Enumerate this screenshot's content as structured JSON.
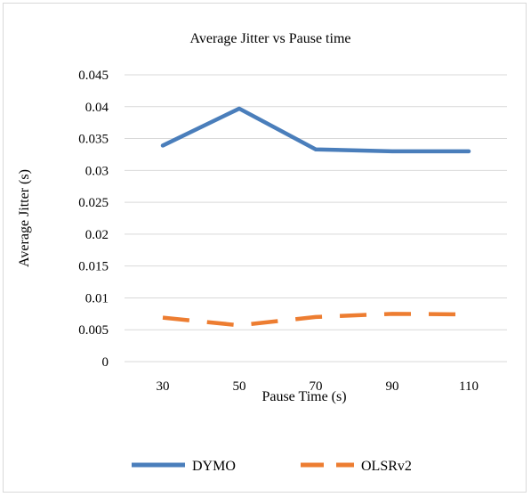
{
  "chart_data": {
    "type": "line",
    "title": "Average Jitter vs Pause time",
    "xlabel": "Pause Time (s)",
    "ylabel": "Average Jitter (s)",
    "categories": [
      "30",
      "50",
      "70",
      "90",
      "110"
    ],
    "ylim": [
      0,
      0.045
    ],
    "yticks": [
      "0",
      "0.005",
      "0.01",
      "0.015",
      "0.02",
      "0.025",
      "0.03",
      "0.035",
      "0.04",
      "0.045"
    ],
    "grid": true,
    "legend_position": "bottom",
    "series": [
      {
        "name": "DYMO",
        "values": [
          0.0339,
          0.0397,
          0.0333,
          0.033,
          0.033
        ],
        "color": "#4a7ebb",
        "style": "solid"
      },
      {
        "name": "OLSRv2",
        "values": [
          0.0069,
          0.0057,
          0.007,
          0.0075,
          0.0074
        ],
        "color": "#ed7d31",
        "style": "dashed"
      }
    ]
  }
}
